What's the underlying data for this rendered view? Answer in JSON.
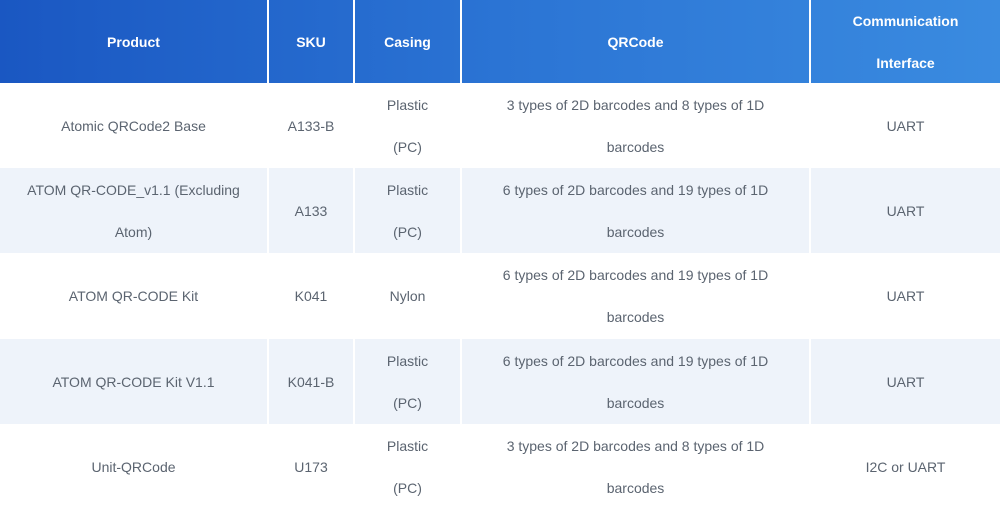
{
  "headers": [
    "Product",
    "SKU",
    "Casing",
    "QRCode",
    "Communication Interface"
  ],
  "rows": [
    {
      "product": "Atomic QRCode2 Base",
      "sku": "A133-B",
      "casing": "Plastic (PC)",
      "qrcode": "3 types of 2D barcodes and 8 types of 1D barcodes",
      "interface": "UART"
    },
    {
      "product": "ATOM QR-CODE_v1.1 (Excluding Atom)",
      "sku": "A133",
      "casing": "Plastic (PC)",
      "qrcode": "6 types of 2D barcodes and 19 types of 1D barcodes",
      "interface": "UART"
    },
    {
      "product": "ATOM QR-CODE Kit",
      "sku": "K041",
      "casing": "Nylon",
      "qrcode": "6 types of 2D barcodes and 19 types of 1D barcodes",
      "interface": "UART"
    },
    {
      "product": "ATOM QR-CODE Kit V1.1",
      "sku": "K041-B",
      "casing": "Plastic (PC)",
      "qrcode": "6 types of 2D barcodes and 19 types of 1D barcodes",
      "interface": "UART"
    },
    {
      "product": "Unit-QRCode",
      "sku": "U173",
      "casing": "Plastic (PC)",
      "qrcode": "3 types of 2D barcodes and 8 types of 1D barcodes",
      "interface": "I2C or UART"
    }
  ],
  "colors": {
    "header_start": "#1a57c2",
    "header_end": "#3a8be0",
    "alt_row": "#eef3fa",
    "text": "#5b6470"
  }
}
